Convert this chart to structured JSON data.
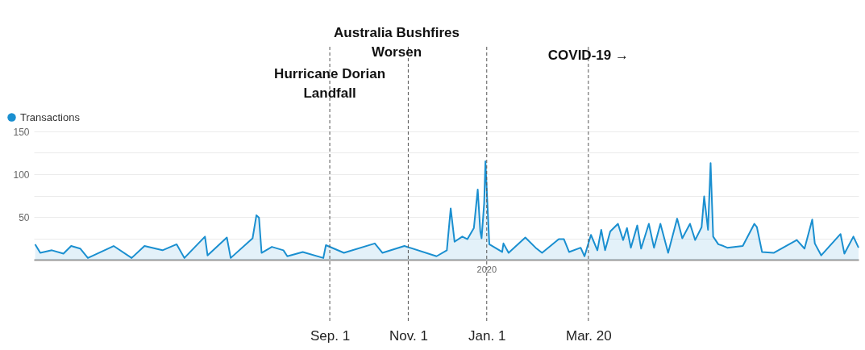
{
  "chart_data": {
    "type": "area",
    "x": [
      "2019-01-15",
      "2019-01-19",
      "2019-01-28",
      "2019-02-06",
      "2019-02-12",
      "2019-02-19",
      "2019-02-25",
      "2019-03-17",
      "2019-03-31",
      "2019-04-10",
      "2019-04-24",
      "2019-05-05",
      "2019-05-11",
      "2019-05-27",
      "2019-05-29",
      "2019-06-13",
      "2019-06-16",
      "2019-07-03",
      "2019-07-06",
      "2019-07-08",
      "2019-07-10",
      "2019-07-18",
      "2019-07-27",
      "2019-07-30",
      "2019-08-11",
      "2019-08-27",
      "2019-08-29",
      "2019-09-12",
      "2019-10-06",
      "2019-10-12",
      "2019-10-29",
      "2019-11-23",
      "2019-12-01",
      "2019-12-04",
      "2019-12-07",
      "2019-12-13",
      "2019-12-17",
      "2019-12-22",
      "2019-12-25",
      "2019-12-27",
      "2019-12-28",
      "2019-12-30",
      "2019-12-31",
      "2020-01-03",
      "2020-01-13",
      "2020-01-14",
      "2020-01-18",
      "2020-01-31",
      "2020-02-08",
      "2020-02-13",
      "2020-02-26",
      "2020-03-01",
      "2020-03-05",
      "2020-03-14",
      "2020-03-17",
      "2020-03-22",
      "2020-03-27",
      "2020-03-30",
      "2020-04-02",
      "2020-04-06",
      "2020-04-12",
      "2020-04-16",
      "2020-04-19",
      "2020-04-22",
      "2020-04-27",
      "2020-04-30",
      "2020-05-06",
      "2020-05-10",
      "2020-05-15",
      "2020-05-21",
      "2020-05-28",
      "2020-06-01",
      "2020-06-07",
      "2020-06-11",
      "2020-06-16",
      "2020-06-18",
      "2020-06-21",
      "2020-06-23",
      "2020-06-25",
      "2020-06-29",
      "2020-07-03",
      "2020-07-06",
      "2020-07-18",
      "2020-07-27",
      "2020-07-29",
      "2020-08-02",
      "2020-08-11",
      "2020-08-29",
      "2020-09-04",
      "2020-09-10",
      "2020-09-12",
      "2020-09-17",
      "2020-10-02",
      "2020-10-05",
      "2020-10-12",
      "2020-10-16"
    ],
    "series": [
      {
        "name": "Transactions",
        "color": "#1a8fd0",
        "values": [
          18,
          8,
          11,
          7,
          16,
          13,
          2,
          16,
          2,
          16,
          11,
          18,
          2,
          27,
          5,
          26,
          2,
          25,
          52,
          49,
          8,
          15,
          11,
          4,
          9,
          2,
          17,
          8,
          19,
          8,
          16,
          4,
          11,
          60,
          21,
          27,
          24,
          37,
          82,
          33,
          25,
          66,
          115,
          18,
          9,
          19,
          8,
          26,
          14,
          8,
          24,
          24,
          9,
          14,
          4,
          29,
          11,
          35,
          11,
          33,
          42,
          23,
          37,
          14,
          40,
          13,
          42,
          14,
          42,
          8,
          48,
          25,
          42,
          23,
          38,
          74,
          35,
          113,
          27,
          18,
          16,
          14,
          16,
          42,
          38,
          9,
          8,
          23,
          13,
          47,
          19,
          5,
          30,
          7,
          27,
          14
        ]
      }
    ],
    "xlim": [
      "2019-01-14",
      "2020-10-16"
    ],
    "xticks": [
      {
        "value": "2019-09-01",
        "label": "Sep. 1"
      },
      {
        "value": "2019-11-01",
        "label": "Nov. 1"
      },
      {
        "value": "2020-01-01",
        "label": "Jan. 1"
      },
      {
        "value": "2020-03-20",
        "label": "Mar. 20"
      }
    ],
    "ylim": [
      0,
      150
    ],
    "yticks": [
      {
        "value": 0,
        "label": null
      },
      {
        "value": 25,
        "label": null
      },
      50,
      {
        "value": 75,
        "label": null
      },
      100,
      {
        "value": 125,
        "label": null
      },
      150
    ],
    "grid": "y",
    "legend": "top left",
    "marker": "none",
    "ref_lines": [
      {
        "axis": "x",
        "value": "2019-09-01",
        "color": "#555555",
        "line_style": "dashed"
      },
      {
        "axis": "x",
        "value": "2019-11-01",
        "color": "#555555",
        "line_style": "dashed"
      },
      {
        "axis": "x",
        "value": "2020-01-01",
        "color": "#555555",
        "line_style": "dashed"
      },
      {
        "axis": "x",
        "value": "2020-03-20",
        "color": "#555555",
        "line_style": "dashed"
      }
    ],
    "annotations": [
      {
        "text": "Hurricane Dorian\nLandfall",
        "x": "2019-09-01"
      },
      "Australia Bushfires\nWorsen",
      {
        "text": "COVID-19 →",
        "x": "2020-03-20"
      },
      {
        "text": "2020",
        "x": "2020-01-01"
      }
    ]
  }
}
